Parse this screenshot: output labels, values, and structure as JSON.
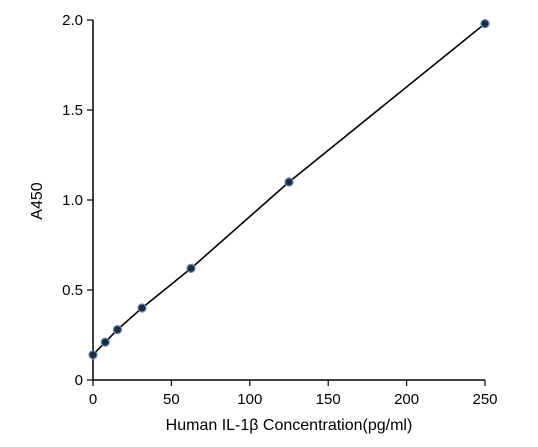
{
  "chart_data": {
    "type": "line",
    "title": "",
    "xlabel": "Human IL-1β Concentration(pg/ml)",
    "ylabel": "A450",
    "xlim": [
      0,
      250
    ],
    "ylim": [
      0,
      2.0
    ],
    "x_ticks": [
      0,
      50,
      100,
      150,
      200,
      250
    ],
    "x_tick_labels": [
      "0",
      "50",
      "100",
      "150",
      "200",
      "250"
    ],
    "y_ticks": [
      0,
      0.5,
      1.0,
      1.5,
      2.0
    ],
    "y_tick_labels": [
      "0",
      "0.5",
      "1.0",
      "1.5",
      "2.0"
    ],
    "grid": false,
    "series": [
      {
        "x": [
          0,
          7.8,
          15.6,
          31.25,
          62.5,
          125,
          250
        ],
        "y": [
          0.14,
          0.21,
          0.28,
          0.4,
          0.62,
          1.1,
          1.98
        ],
        "color": "#000000",
        "marker_color": "#1f2b3a"
      }
    ]
  }
}
